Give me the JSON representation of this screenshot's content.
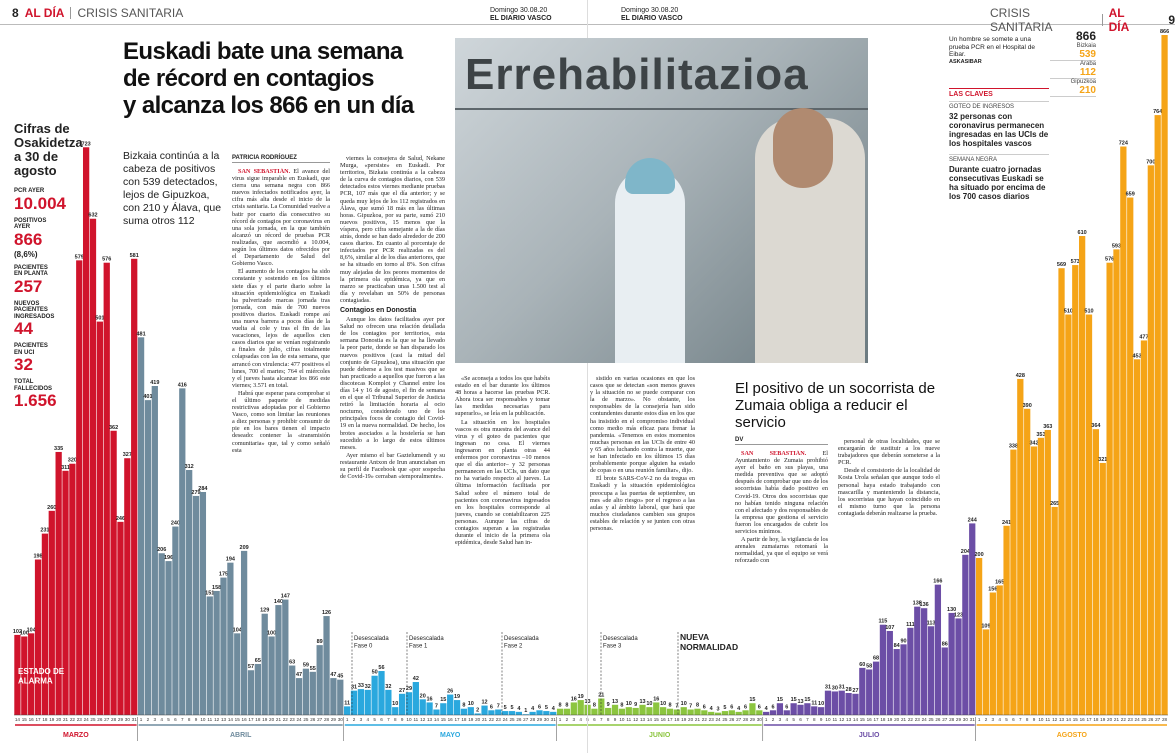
{
  "header_left": {
    "page": "8",
    "section": "AL DÍA",
    "topic": "CRISIS SANITARIA"
  },
  "folio_left": {
    "date": "Domingo 30.08.20",
    "paper": "EL DIARIO VASCO"
  },
  "folio_right": {
    "date": "Domingo 30.08.20",
    "paper": "EL DIARIO VASCO"
  },
  "header_right": {
    "topic": "CRISIS SANITARIA",
    "section": "AL DÍA",
    "page": "9"
  },
  "headline": [
    "Euskadi bate una semana",
    "de récord en contagios",
    "y alcanza los 866 en un día"
  ],
  "subhead": "Bizkaia continúa a la cabeza de positivos con 539 detectados, lejos de Gipuzkoa, con 210 y Álava, que suma otros 112",
  "stats": {
    "title": "Cifras de Osakidetza a 30 de agosto",
    "items": [
      {
        "label": "PCR AYER",
        "value": "10.004"
      },
      {
        "label": "POSITIVOS AYER",
        "value": "866",
        "note": "(8,6%)"
      },
      {
        "label": "PACIENTES EN PLANTA",
        "value": "257"
      },
      {
        "label": "NUEVOS PACIENTES INGRESADOS",
        "value": "44"
      },
      {
        "label": "PACIENTES EN UCI",
        "value": "32"
      },
      {
        "label": "TOTAL FALLECIDOS",
        "value": "1.656"
      }
    ]
  },
  "territories": {
    "total": "866",
    "items": [
      {
        "name": "Bizkaia",
        "value": "539"
      },
      {
        "name": "Araba",
        "value": "112"
      },
      {
        "name": "Gipuzkoa",
        "value": "210"
      }
    ]
  },
  "photo": {
    "sign": "Errehabilitazioa",
    "caption": "Un hombre se somete a una prueba PCR en el Hospital de Eibar.",
    "credit": "ASKASIBAR"
  },
  "claves": {
    "title": "LAS CLAVES",
    "items": [
      {
        "kicker": "GOTEO DE INGRESOS",
        "text": "32 personas con coronavirus permanecen ingresadas en las UCIs de los hospitales vascos"
      },
      {
        "kicker": "SEMANA NEGRA",
        "text": "Durante cuatro jornadas consecutivas Euskadi se ha situado por encima de los 700 casos diarios"
      }
    ]
  },
  "article": {
    "byline": "PATRICIA RODRÍGUEZ",
    "columns": [
      [
        {
          "lead": "SAN SEBASTIÁN.",
          "text": "El avance del virus sigue imparable en Euskadi, que cierra una semana negra con 866 nuevos infectados notificados ayer, la cifra más alta desde el inicio de la crisis sanitaria. La Comunidad vuelve a batir por cuarto día consecutivo su récord de contagios por coronavirus en una sola jornada, en la que también alcanzó un récord de pruebas PCR realizadas, que ascendió a 10.004, según los últimos datos ofrecidos por el Departamento de Salud del Gobierno Vasco."
        },
        "El aumento de los contagios ha sido constante y sostenido en los últimos siete días y el parte diario sobre la situación epidemiológica en Euskadi ha pulverizado marcas jornada tras jornada, con más de 700 nuevos positivos diarios. Euskadi rompe así una nueva barrera a pocos días de la vuelta al cole y tras el fin de las vacaciones, lejos de aquellos cien casos diarios que se venían registrando a finales de julio, cifras totalmente colapsadas con las de esta semana, que arrancó con virulencia: 477 positivos el lunes, 700 el martes; 764 el miércoles y el jueves hasta alcanzar los 866 este viernes; 3.571 en total.",
        "Habrá que esperar para comprobar si el último paquete de medidas restrictivas adoptadas por el Gobierno Vasco, como son limitar las reuniones a diez personas y prohibir consumir de pie en los bares tienen el impacto deseado: contener la «transmisión comunitaria» que, tal y como señaló esta"
      ],
      [
        "viernes la consejera de Salud, Nekane Murga, «persiste» en Euskadi. Por territorios, Bizkaia continúa a la cabeza de la curva de contagios diarios, con 539 detectados estos viernes mediante pruebas PCR, 107 más que el día anterior; y se queda muy lejos de los 112 registrados en Álava, que sumó 18 más en las últimas horas. Gipuzkoa, por su parte, sumó 210 nuevos positivos, 15 menos que la víspera, pero cifra semejante a la de días atrás, donde se han dado alrededor de 200 casos diarios. En cuanto al porcentaje de infectados por PCR realizadas es del 8,6%, similar al de los días anteriores, que se ha situado en torno al 8%. Son cifras muy alejadas de los peores momentos de la primera ola epidémica, ya que en marzo se practicaban unas 1.500 test al día y revelaban un 50% de personas contagiadas.",
        {
          "h": "Contagios en Donostia"
        },
        "Aunque los datos facilitados ayer por Salud no ofrecen una relación detallada de los contagios por territorios, esta semana Donostia es la que se ha llevado la peor parte, donde se han disparado los nuevos positivos (casi la mitad del conjunto de Gipuzkoa), una situación que puede deberse a los test masivos que se han practicado a aquellos que fueron a las discotecas Komplot y Channel entre los días 14 y 16 de agosto, el fin de semana en el que el Tribunal Superior de Justicia retiró la limitación horaria al ocio nocturno, considerado uno de los principales focos de contagio del Covid-19 en la nueva normalidad. De hecho, los brotes asociados a la hostelería se han sucedido a lo largo de estos últimos meses.",
        "Ayer mismo el bar Gaztelumendi y su restaurante Antxon de Irun anunciaban en su perfil de Facebook que «por sospecha de Covid-19» cerraban «temporalmente»."
      ],
      [
        "«Se aconseja a todos los que habéis estado en el bar durante los últimos 48 horas a hacerse las pruebas PCR. Ahora toca ser responsables y tomar las medidas necesarias para superarlo», se leía en la publicación.",
        "La situación en los hospitales vascos es otra muestra del avance del virus y el goteo de pacientes que ingresan no cesa. El viernes ingresaron en planta otras 44 enfermos por coronavirus –10 menos que el día anterior– y 32 personas permanecen en las UCIs, un dato que no ha variado respecto al jueves. La última información facilitada por Salud sobre el número total de pacientes con coronavirus ingresados en los hospitales corresponde al jueves, cuando se contabilizaron 225 personas. Aunque las cifras de contagios superan a las registradas durante el inicio de la primera ola epidémica, desde Salud han in-"
      ],
      [
        "sistido en varias ocasiones en que los casos que se detectan «son menos graves y la situación no se puede comparar con la de marzo». No obstante, los responsables de la consejería han sido contundentes durante estos días en los que ha insistido en el compromiso individual como medio más eficaz para frenar la pandemia. «Tenemos en estos momentos muchas personas en las UCIs de entre 40 y 65 años luchando contra la muerte, que se han infectado en los últimos 15 días probablemente porque alguien ha estado de copas o en una reunión familiar», dijo.",
        "El brote SARS-CoV-2 no da tregua en Euskadi y la situación epidemiológica preocupa a las puertas de septiembre, un mes «de alto riesgo» por el regreso a las aulas y al ámbito laboral, que hará que muchos ciudadanos cambien sus grupos estables de relación y se junten con otras personas."
      ]
    ]
  },
  "article2": {
    "headline": "El positivo de un socorrista de Zumaia obliga a reducir el servicio",
    "byline": "DV",
    "columns": [
      [
        {
          "lead": "SAN SEBASTIÁN.",
          "text": "El Ayuntamiento de Zumaia prohibió ayer el baño en sus playas, una medida preventiva que se adoptó después de comprobar que uno de los socorristas había dado positivo en Covid-19. Otros dos socorristas que no habían tenido ninguna relación con el afectado y dos responsables de la empresa que gestiona el servicio fueron los encargados de cubrir los servicios mínimos."
        },
        "A partir de hoy, la vigilancia de los arenales zumaiarras retomará la normalidad, ya que el equipo se verá reforzado con"
      ],
      [
        "personal de otras localidades, que se encargarán de sustituir a los nueve trabajadores que deberán someterse a la PCR.",
        "Desde el consistorio de la localidad de Kosta Urola señalan que aunque todo el personal haya estado trabajando con mascarilla y manteniendo la distancia, los socorristas que hayan coincidido en el mismo turno que la persona contagiada deberán realizarse la prueba."
      ]
    ]
  },
  "chart_data": {
    "type": "bar",
    "months": [
      {
        "name": "MARZO",
        "color": "#d0142c",
        "days": [
          14,
          15,
          16,
          17,
          18,
          19,
          20,
          21,
          22,
          23,
          24,
          25,
          26,
          27,
          28,
          29,
          30,
          31
        ],
        "values": [
          102,
          100,
          104,
          198,
          231,
          260,
          335,
          311,
          320,
          579,
          723,
          632,
          501,
          576,
          362,
          246,
          327,
          581
        ]
      },
      {
        "name": "ABRIL",
        "color": "#6f8b9d",
        "days": [
          1,
          2,
          3,
          4,
          5,
          6,
          7,
          8,
          9,
          10,
          11,
          12,
          13,
          14,
          15,
          16,
          17,
          18,
          19,
          20,
          21,
          22,
          23,
          24,
          25,
          26,
          27,
          28,
          29,
          30
        ],
        "values": [
          481,
          401,
          419,
          206,
          196,
          240,
          416,
          312,
          279,
          284,
          151,
          158,
          175,
          194,
          104,
          209,
          57,
          65,
          129,
          100,
          140,
          147,
          63,
          47,
          59,
          55,
          89,
          126,
          47,
          45
        ]
      },
      {
        "name": "MAYO",
        "color": "#2aa8de",
        "days": [
          1,
          2,
          3,
          4,
          5,
          6,
          7,
          8,
          9,
          10,
          11,
          12,
          13,
          14,
          15,
          16,
          17,
          18,
          19,
          20,
          21,
          22,
          23,
          24,
          25,
          26,
          27,
          28,
          29,
          30,
          31
        ],
        "values": [
          11,
          31,
          33,
          32,
          50,
          56,
          32,
          10,
          27,
          29,
          42,
          20,
          16,
          7,
          15,
          26,
          19,
          8,
          10,
          2,
          12,
          6,
          7,
          5,
          5,
          4,
          1,
          4,
          6,
          5,
          4
        ]
      },
      {
        "name": "JUNIO",
        "color": "#8cc53f",
        "days": [
          1,
          2,
          3,
          4,
          5,
          6,
          7,
          8,
          9,
          10,
          11,
          12,
          13,
          14,
          15,
          16,
          17,
          18,
          19,
          20,
          21,
          22,
          23,
          24,
          25,
          26,
          27,
          28,
          29,
          30
        ],
        "values": [
          8,
          8,
          16,
          19,
          13,
          8,
          21,
          9,
          13,
          8,
          10,
          9,
          13,
          10,
          16,
          10,
          8,
          7,
          10,
          7,
          8,
          6,
          4,
          3,
          5,
          6,
          4,
          6,
          15,
          6
        ]
      },
      {
        "name": "JULIO",
        "color": "#6c4ea6",
        "days": [
          1,
          2,
          3,
          4,
          5,
          6,
          7,
          8,
          9,
          10,
          11,
          12,
          13,
          14,
          15,
          16,
          17,
          18,
          19,
          20,
          21,
          22,
          23,
          24,
          25,
          26,
          27,
          28,
          29,
          30,
          31
        ],
        "values": [
          4,
          6,
          15,
          6,
          15,
          13,
          15,
          11,
          10,
          31,
          30,
          31,
          28,
          27,
          60,
          58,
          68,
          115,
          107,
          84,
          90,
          111,
          138,
          136,
          113,
          166,
          86,
          130,
          123,
          204,
          244
        ]
      },
      {
        "name": "AGOSTO",
        "color": "#f5a417",
        "days": [
          1,
          2,
          3,
          4,
          5,
          6,
          7,
          8,
          9,
          10,
          11,
          12,
          13,
          14,
          15,
          16,
          17,
          18,
          19,
          20,
          21,
          22,
          23,
          24,
          25,
          26,
          27,
          28
        ],
        "values": [
          200,
          109,
          156,
          165,
          241,
          338,
          428,
          390,
          342,
          353,
          363,
          265,
          569,
          510,
          573,
          610,
          510,
          364,
          321,
          576,
          593,
          724,
          659,
          453,
          477,
          700,
          764,
          866
        ]
      }
    ],
    "annotations": [
      {
        "lines": [
          "ESTADO DE",
          "ALARMA"
        ]
      },
      {
        "lines": [
          "Desescalada",
          "Fase 0"
        ]
      },
      {
        "lines": [
          "Desescalada",
          "Fase 1"
        ]
      },
      {
        "lines": [
          "Desescalada",
          "Fase 2"
        ]
      },
      {
        "lines": [
          "Desescalada",
          "Fase 3"
        ]
      },
      {
        "lines": [
          "NUEVA",
          "NORMALIDAD"
        ]
      }
    ]
  }
}
